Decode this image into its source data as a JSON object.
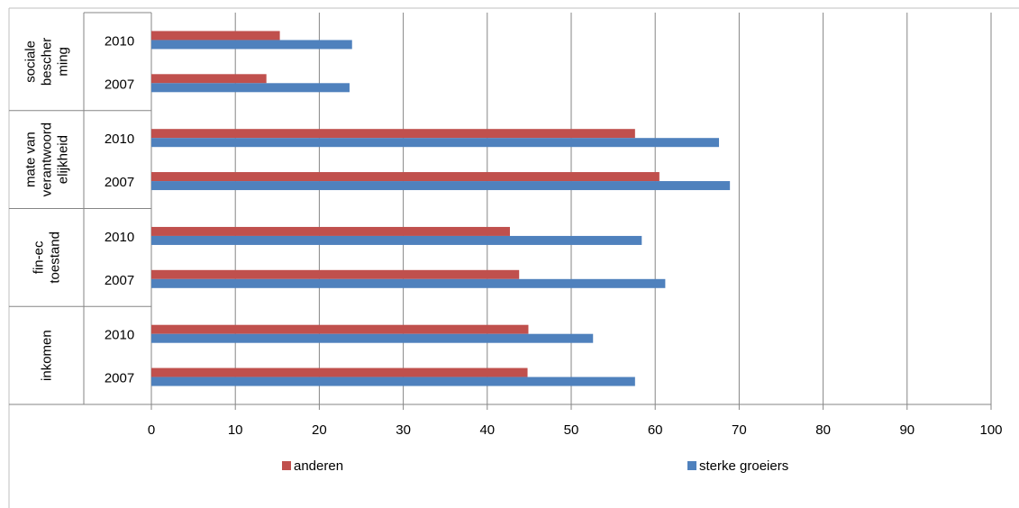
{
  "chart_data": {
    "type": "bar",
    "orientation": "horizontal",
    "title": "",
    "xlabel": "",
    "ylabel": "",
    "xlim": [
      0,
      100
    ],
    "x_ticks": [
      "0",
      "10",
      "20",
      "30",
      "40",
      "50",
      "60",
      "70",
      "80",
      "90",
      "100"
    ],
    "grid": "vertical",
    "legend_position": "bottom",
    "groups": [
      {
        "label": "sociale bescher ming",
        "label_lines": [
          "sociale",
          "bescher",
          "ming"
        ],
        "years": [
          "2010",
          "2007"
        ]
      },
      {
        "label": "mate van verantwoord elijkheid",
        "label_lines": [
          "mate van",
          "verantwoord",
          "elijkheid"
        ],
        "years": [
          "2010",
          "2007"
        ]
      },
      {
        "label": "fin-ec toestand",
        "label_lines": [
          "fin-ec",
          "toestand"
        ],
        "years": [
          "2010",
          "2007"
        ]
      },
      {
        "label": "inkomen",
        "label_lines": [
          "inkomen"
        ],
        "years": [
          "2010",
          "2007"
        ]
      }
    ],
    "series": [
      {
        "name": "anderen",
        "color": "#c0504d",
        "values": [
          [
            15.3,
            13.7
          ],
          [
            57.6,
            60.5
          ],
          [
            42.7,
            43.8
          ],
          [
            44.9,
            44.8
          ]
        ]
      },
      {
        "name": "sterke groeiers",
        "color": "#4f81bd",
        "values": [
          [
            23.9,
            23.6
          ],
          [
            67.6,
            68.9
          ],
          [
            58.4,
            61.2
          ],
          [
            52.6,
            57.6
          ]
        ]
      }
    ],
    "colors": {
      "axis": "#868686",
      "grid": "#868686"
    }
  }
}
